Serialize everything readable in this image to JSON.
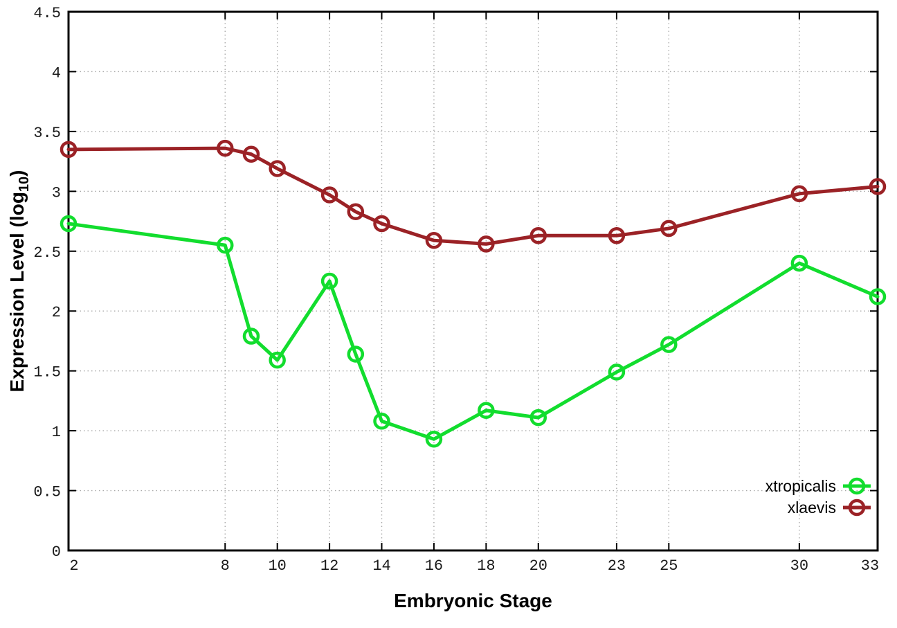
{
  "chart_data": {
    "type": "line",
    "title": "",
    "xlabel": "Embryonic Stage",
    "ylabel": "Expression Level (log10)",
    "ylabel_parts": {
      "main": "Expression Level (log",
      "sub": "10",
      "end": ")"
    },
    "x": [
      2,
      8,
      9,
      10,
      12,
      13,
      14,
      16,
      18,
      20,
      23,
      25,
      30,
      33
    ],
    "xtick_labels": [
      "2",
      "8",
      "10",
      "12",
      "14",
      "16",
      "18",
      "20",
      "23",
      "25",
      "30",
      "33"
    ],
    "xticks": [
      2,
      8,
      10,
      12,
      14,
      16,
      18,
      20,
      23,
      25,
      30,
      33
    ],
    "yticks": [
      0,
      0.5,
      1,
      1.5,
      2,
      2.5,
      3,
      3.5,
      4,
      4.5
    ],
    "ytick_labels": [
      "0",
      "0.5",
      "1",
      "1.5",
      "2",
      "2.5",
      "3",
      "3.5",
      "4",
      "4.5"
    ],
    "xlim": [
      2,
      33
    ],
    "ylim": [
      0,
      4.5
    ],
    "grid": true,
    "legend_position": "bottom-right",
    "marker": "open-circle",
    "series": [
      {
        "name": "xtropicalis",
        "color": "#12dd2e",
        "values": [
          2.73,
          2.55,
          1.79,
          1.59,
          2.25,
          1.64,
          1.08,
          0.93,
          1.17,
          1.11,
          1.49,
          1.72,
          2.4,
          2.12
        ]
      },
      {
        "name": "xlaevis",
        "color": "#9b2226",
        "values": [
          3.35,
          3.36,
          3.31,
          3.19,
          2.97,
          2.83,
          2.73,
          2.59,
          2.56,
          2.63,
          2.63,
          2.69,
          2.98,
          3.04
        ]
      }
    ],
    "colors": {
      "plot_border": "#000000",
      "grid": "#a9a9a9",
      "tick_text": "#1a1a1a",
      "background": "#ffffff"
    }
  }
}
